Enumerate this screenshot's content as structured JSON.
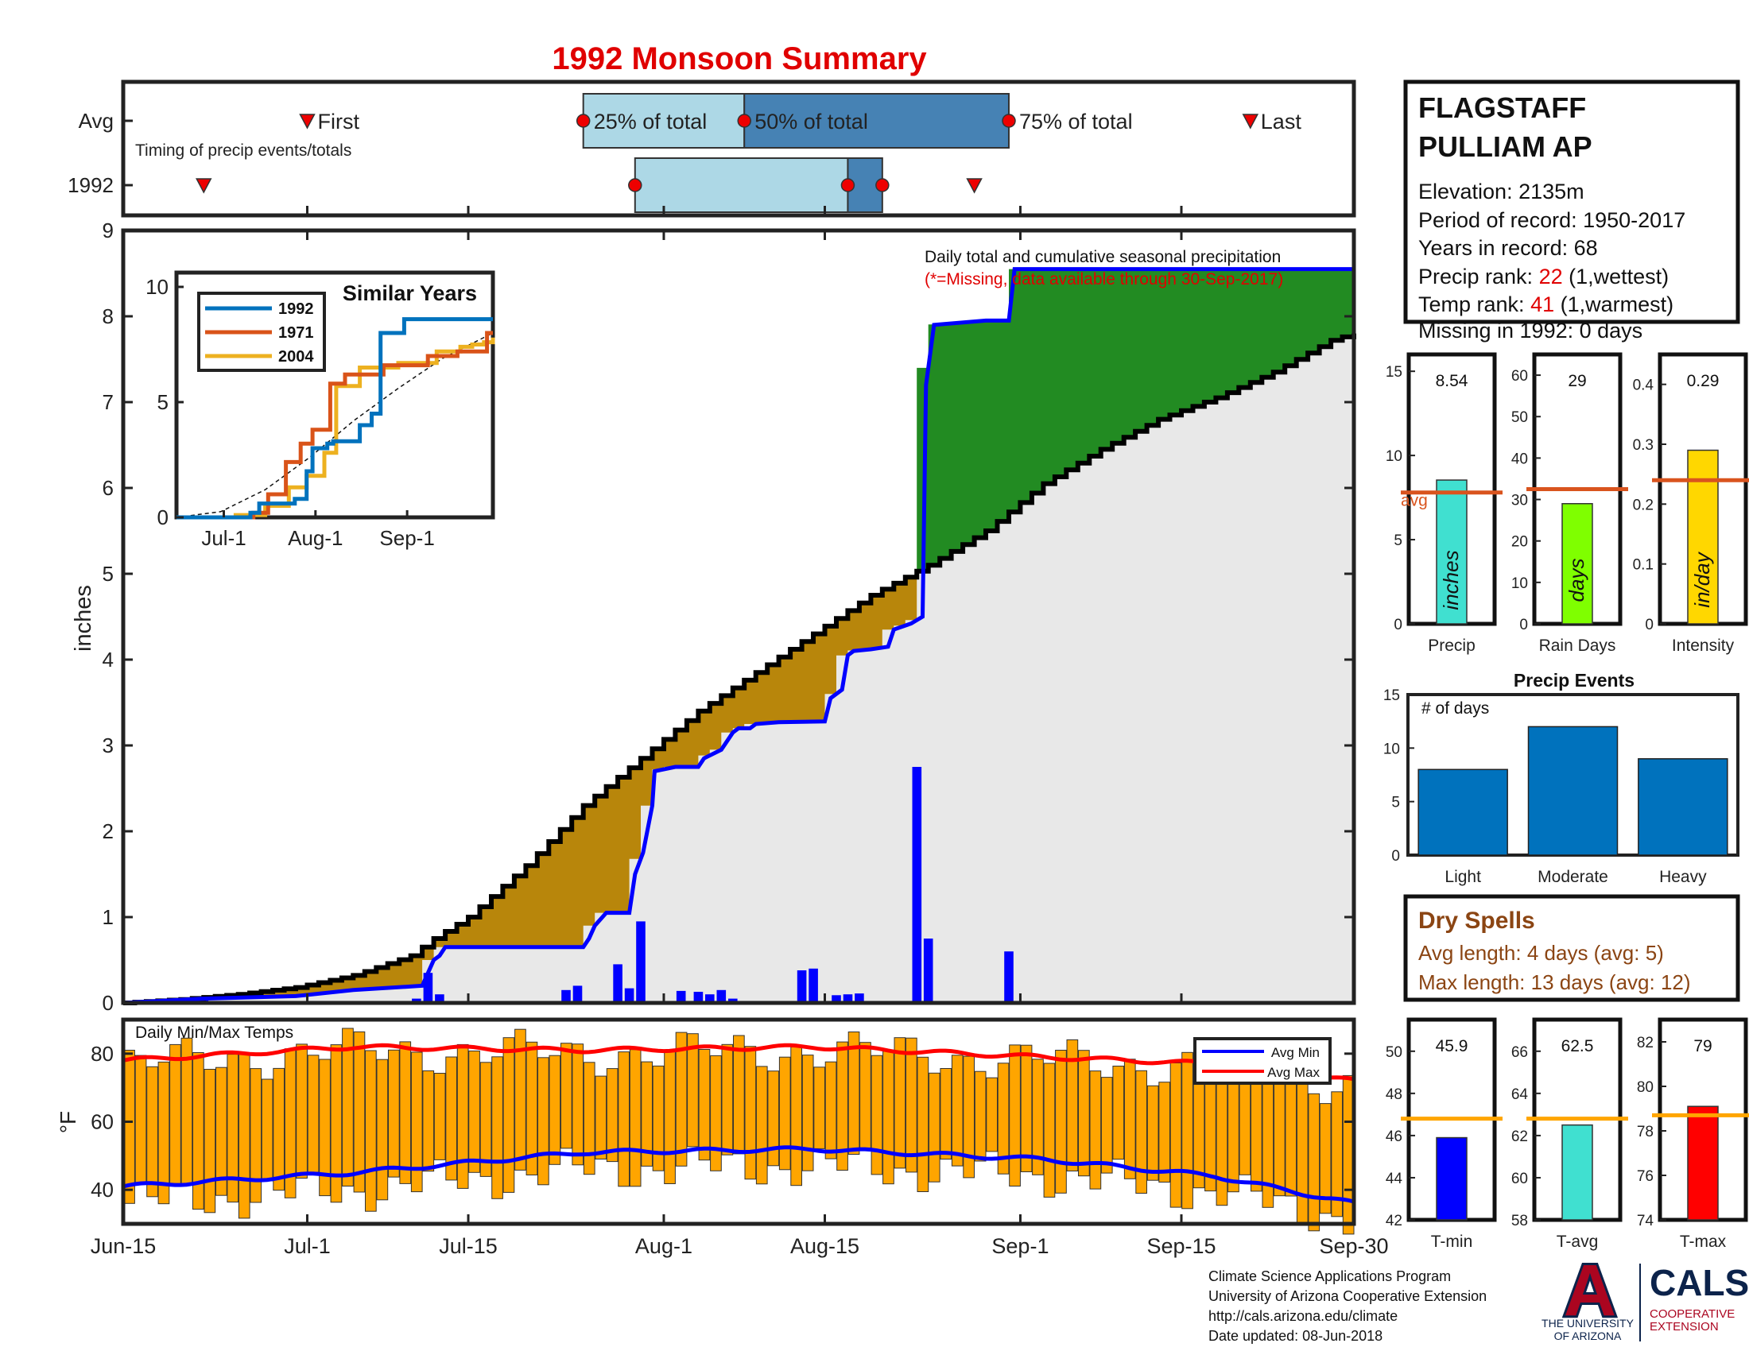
{
  "title": "1992 Monsoon Summary",
  "colors": {
    "title": "#e00000",
    "blue_line": "#0000ff",
    "black_line": "#000000",
    "green_fill": "#228b22",
    "brown_fill": "#b8860b",
    "gray_fill": "#e8e8e8",
    "bar_blue": "#0000ff",
    "orange_bar": "#ffa500",
    "avg_min": "#0000ff",
    "avg_max": "#ff0000",
    "light_box": "#add8e6",
    "dark_box": "#4682b4",
    "marker_red": "#ee0000",
    "brown_text": "#8b4513",
    "ref_line": "#d9541e",
    "ua_navy": "#0c234b",
    "ua_red": "#ab0520"
  },
  "timing": {
    "row_labels": [
      "Avg",
      "1992"
    ],
    "caption": "Timing of precip events/totals",
    "avg_labels": {
      "first": "First",
      "p25": "25% of total",
      "p50": "50% of total",
      "p75": "75% of total",
      "last": "Last"
    },
    "avg_dates": {
      "first": 16,
      "p25": 40,
      "p50": 54,
      "p75": 77,
      "last": 98
    },
    "y1992_dates": {
      "first": 7,
      "p25": 44.5,
      "p50": 63,
      "p75": 66,
      "last": 74
    }
  },
  "chart_data": [
    {
      "type": "area",
      "name": "daily_cumulative_precip",
      "annotation": "Daily total and cumulative seasonal precipitation",
      "note": "(*=Missing, data available through 30-Sep-2017)",
      "ylabel": "inches",
      "ylim": [
        0,
        9
      ],
      "yticks": [
        0,
        1,
        2,
        3,
        4,
        5,
        6,
        7,
        8,
        9
      ],
      "xlim": [
        0,
        107
      ],
      "xticks": [
        {
          "label": "Jun-15",
          "day": 0
        },
        {
          "label": "Jul-1",
          "day": 16
        },
        {
          "label": "Jul-15",
          "day": 30
        },
        {
          "label": "Aug-1",
          "day": 47
        },
        {
          "label": "Aug-15",
          "day": 61
        },
        {
          "label": "Sep-1",
          "day": 78
        },
        {
          "label": "Sep-15",
          "day": 92
        },
        {
          "label": "Sep-30",
          "day": 107
        }
      ],
      "cumulative_1992": [
        [
          0,
          0
        ],
        [
          7,
          0.05
        ],
        [
          15,
          0.08
        ],
        [
          20,
          0.15
        ],
        [
          26,
          0.2
        ],
        [
          26.5,
          0.35
        ],
        [
          27,
          0.5
        ],
        [
          27.5,
          0.55
        ],
        [
          28,
          0.65
        ],
        [
          40,
          0.65
        ],
        [
          40.5,
          0.75
        ],
        [
          41,
          0.9
        ],
        [
          42,
          1.05
        ],
        [
          44,
          1.05
        ],
        [
          44.5,
          1.5
        ],
        [
          45.2,
          1.75
        ],
        [
          46,
          2.3
        ],
        [
          46.2,
          2.7
        ],
        [
          48,
          2.75
        ],
        [
          50,
          2.75
        ],
        [
          50.5,
          2.85
        ],
        [
          52,
          2.95
        ],
        [
          53,
          3.15
        ],
        [
          53.5,
          3.2
        ],
        [
          54.5,
          3.2
        ],
        [
          55,
          3.25
        ],
        [
          57,
          3.27
        ],
        [
          61,
          3.28
        ],
        [
          61.5,
          3.55
        ],
        [
          62.5,
          3.65
        ],
        [
          63,
          4.05
        ],
        [
          63.5,
          4.1
        ],
        [
          65,
          4.12
        ],
        [
          66.5,
          4.15
        ],
        [
          67,
          4.35
        ],
        [
          68.5,
          4.42
        ],
        [
          69.5,
          4.5
        ],
        [
          69.8,
          7.2
        ],
        [
          70.5,
          7.9
        ],
        [
          75,
          7.95
        ],
        [
          77,
          7.95
        ],
        [
          77.5,
          8.55
        ],
        [
          107,
          8.55
        ]
      ],
      "cumulative_avg": [
        [
          0,
          0
        ],
        [
          5,
          0.04
        ],
        [
          10,
          0.1
        ],
        [
          15,
          0.18
        ],
        [
          20,
          0.32
        ],
        [
          25,
          0.55
        ],
        [
          27,
          0.75
        ],
        [
          30,
          1.0
        ],
        [
          35,
          1.6
        ],
        [
          40,
          2.3
        ],
        [
          45,
          2.85
        ],
        [
          50,
          3.4
        ],
        [
          55,
          3.85
        ],
        [
          60,
          4.3
        ],
        [
          65,
          4.75
        ],
        [
          70,
          5.1
        ],
        [
          75,
          5.5
        ],
        [
          80,
          6.05
        ],
        [
          85,
          6.45
        ],
        [
          90,
          6.8
        ],
        [
          95,
          7.05
        ],
        [
          100,
          7.35
        ],
        [
          105,
          7.72
        ],
        [
          107,
          7.8
        ]
      ],
      "daily_bars": [
        [
          6,
          0.03
        ],
        [
          7,
          0.05
        ],
        [
          25.5,
          0.05
        ],
        [
          26.5,
          0.35
        ],
        [
          27.5,
          0.1
        ],
        [
          38.5,
          0.15
        ],
        [
          39.5,
          0.2
        ],
        [
          43,
          0.45
        ],
        [
          44,
          0.17
        ],
        [
          45,
          0.95
        ],
        [
          48.5,
          0.14
        ],
        [
          50,
          0.13
        ],
        [
          51,
          0.1
        ],
        [
          52,
          0.15
        ],
        [
          53,
          0.05
        ],
        [
          59,
          0.38
        ],
        [
          60,
          0.4
        ],
        [
          62,
          0.09
        ],
        [
          63,
          0.1
        ],
        [
          64,
          0.11
        ],
        [
          69,
          2.75
        ],
        [
          70,
          0.75
        ],
        [
          77,
          0.6
        ]
      ]
    },
    {
      "type": "line",
      "name": "similar_years",
      "title": "Similar Years",
      "ylim": [
        0,
        10
      ],
      "yticks": [
        0,
        5,
        10
      ],
      "xticks": [
        {
          "label": "Jul-1",
          "day": 16
        },
        {
          "label": "Aug-1",
          "day": 47
        },
        {
          "label": "Sep-1",
          "day": 78
        }
      ],
      "series": [
        {
          "name": "1992",
          "color": "#0072bd",
          "values": [
            [
              0,
              0
            ],
            [
              25,
              0.2
            ],
            [
              28,
              0.6
            ],
            [
              40,
              0.8
            ],
            [
              44,
              2.0
            ],
            [
              46,
              3.0
            ],
            [
              51,
              3.2
            ],
            [
              53,
              3.3
            ],
            [
              62,
              4.0
            ],
            [
              66,
              4.5
            ],
            [
              69,
              8.0
            ],
            [
              74,
              8.0
            ],
            [
              77,
              8.6
            ],
            [
              107,
              8.6
            ]
          ]
        },
        {
          "name": "1971",
          "color": "#d95319",
          "values": [
            [
              0,
              0
            ],
            [
              26,
              0.2
            ],
            [
              31,
              1.0
            ],
            [
              37,
              2.4
            ],
            [
              42,
              3.2
            ],
            [
              46,
              3.8
            ],
            [
              52,
              5.8
            ],
            [
              57,
              6.2
            ],
            [
              70,
              6.6
            ],
            [
              85,
              7.0
            ],
            [
              95,
              7.2
            ],
            [
              105,
              8.0
            ],
            [
              107,
              8.0
            ]
          ]
        },
        {
          "name": "2004",
          "color": "#edb120",
          "values": [
            [
              0,
              0
            ],
            [
              20,
              0.1
            ],
            [
              30,
              0.5
            ],
            [
              38,
              1.3
            ],
            [
              44,
              1.8
            ],
            [
              50,
              2.8
            ],
            [
              54,
              5.7
            ],
            [
              62,
              6.5
            ],
            [
              75,
              6.7
            ],
            [
              88,
              7.2
            ],
            [
              96,
              7.4
            ],
            [
              100,
              7.5
            ],
            [
              104,
              7.6
            ],
            [
              107,
              7.8
            ]
          ]
        }
      ],
      "average": [
        [
          0,
          0
        ],
        [
          15,
          0.25
        ],
        [
          30,
          1.2
        ],
        [
          45,
          2.6
        ],
        [
          60,
          4.2
        ],
        [
          75,
          5.6
        ],
        [
          90,
          6.9
        ],
        [
          107,
          8.0
        ]
      ]
    },
    {
      "type": "bar",
      "name": "daily_min_max_temps",
      "title": "Daily Min/Max Temps",
      "ylabel": "°F",
      "ylim": [
        30,
        90
      ],
      "yticks": [
        40,
        60,
        80
      ],
      "legend": [
        {
          "name": "Avg Min",
          "color": "#0000ff"
        },
        {
          "name": "Avg Max",
          "color": "#ff0000"
        }
      ],
      "legend_position": "top-right",
      "avg_min": [
        [
          0,
          41
        ],
        [
          20,
          45
        ],
        [
          40,
          51
        ],
        [
          60,
          52
        ],
        [
          80,
          49
        ],
        [
          95,
          44
        ],
        [
          107,
          36
        ]
      ],
      "avg_max": [
        [
          0,
          78
        ],
        [
          20,
          82
        ],
        [
          40,
          81
        ],
        [
          60,
          82
        ],
        [
          80,
          79
        ],
        [
          95,
          77
        ],
        [
          107,
          72
        ]
      ]
    },
    {
      "type": "bar",
      "name": "precip_rank_bars",
      "panels": [
        {
          "label": "Precip",
          "value": 8.54,
          "value_text": "8.54",
          "avg": 7.8,
          "avg_label": "avg",
          "ymax": 16,
          "yticks": [
            0,
            5,
            10,
            15
          ],
          "unit": "inches",
          "color": "#40e0d0"
        },
        {
          "label": "Rain Days",
          "value": 29,
          "value_text": "29",
          "avg": 32.5,
          "ymax": 65,
          "yticks": [
            0,
            10,
            20,
            30,
            40,
            50,
            60
          ],
          "unit": "days",
          "color": "#7fff00"
        },
        {
          "label": "Intensity",
          "value": 0.29,
          "value_text": "0.29",
          "avg": 0.24,
          "ymax": 0.45,
          "yticks": [
            0,
            0.1,
            0.2,
            0.3,
            0.4
          ],
          "unit": "in/day",
          "color": "#ffd700"
        }
      ]
    },
    {
      "type": "bar",
      "name": "precip_events",
      "title": "Precip Events",
      "annotation": "# of days",
      "categories": [
        "Light",
        "Moderate",
        "Heavy"
      ],
      "values": [
        8,
        12,
        9
      ],
      "ylim": [
        0,
        15
      ],
      "yticks": [
        0,
        5,
        10,
        15
      ]
    },
    {
      "type": "bar",
      "name": "temp_rank_bars",
      "panels": [
        {
          "label": "T-min",
          "value": 45.9,
          "value_text": "45.9",
          "avg": 46.8,
          "ymin": 42,
          "ymax": 51.5,
          "yticks": [
            42,
            44,
            46,
            48,
            50
          ],
          "color": "#0000ff"
        },
        {
          "label": "T-avg",
          "value": 62.5,
          "value_text": "62.5",
          "avg": 62.8,
          "ymin": 58,
          "ymax": 67.5,
          "yticks": [
            58,
            60,
            62,
            64,
            66
          ],
          "color": "#40e0d0"
        },
        {
          "label": "T-max",
          "value": 79.1,
          "value_text": "79",
          "avg": 78.7,
          "ymin": 74,
          "ymax": 83,
          "yticks": [
            74,
            76,
            78,
            80,
            82
          ],
          "color": "#ff0000"
        }
      ]
    }
  ],
  "station": {
    "name_line1": "FLAGSTAFF",
    "name_line2": "PULLIAM AP",
    "elevation": "Elevation: 2135m",
    "period": "Period of record: 1950-2017",
    "years": "Years in record: 68",
    "precip_rank_label": "Precip rank: ",
    "precip_rank": "22",
    "precip_rank_suffix": " (1,wettest)",
    "temp_rank_label": "Temp rank: ",
    "temp_rank": "41",
    "temp_rank_suffix": " (1,warmest)",
    "missing": "Missing in 1992: 0 days"
  },
  "dry_spells": {
    "title": "Dry Spells",
    "avg_length": "Avg length: 4 days (avg: 5)",
    "max_length": "Max length: 13 days (avg: 12)"
  },
  "footer": {
    "line1": "Climate Science Applications Program",
    "line2": "University of Arizona Cooperative Extension",
    "line3": "http://cals.arizona.edu/climate",
    "line4": " Date updated: 08-Jun-2018",
    "logo_text": "A",
    "university_line1": "THE UNIVERSITY",
    "university_line2": "OF ARIZONA",
    "cals": "CALS",
    "coop_line1": "COOPERATIVE",
    "coop_line2": "EXTENSION"
  }
}
